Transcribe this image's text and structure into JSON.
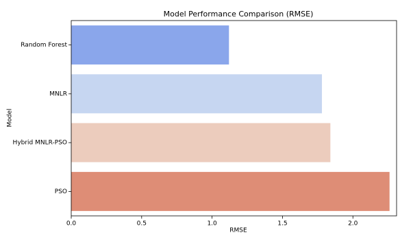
{
  "chart_data": {
    "type": "barh",
    "title": "Model Performance Comparison (RMSE)",
    "x_label": "RMSE",
    "y_label": "Model",
    "categories": [
      "Random Forest",
      "MNLR",
      "Hybrid MNLR-PSO",
      "PSO"
    ],
    "values": [
      1.12,
      1.78,
      1.84,
      2.26
    ],
    "colors": [
      "#8aa6eb",
      "#c6d6f1",
      "#ecccbd",
      "#de8d76"
    ],
    "xlim": [
      0,
      2.31
    ],
    "xticks": [
      {
        "value": 0,
        "label": "0.0"
      },
      {
        "value": 0.5,
        "label": "0.5"
      },
      {
        "value": 1,
        "label": "1.0"
      },
      {
        "value": 1.5,
        "label": "1.5"
      },
      {
        "value": 2,
        "label": "2.0"
      }
    ]
  }
}
